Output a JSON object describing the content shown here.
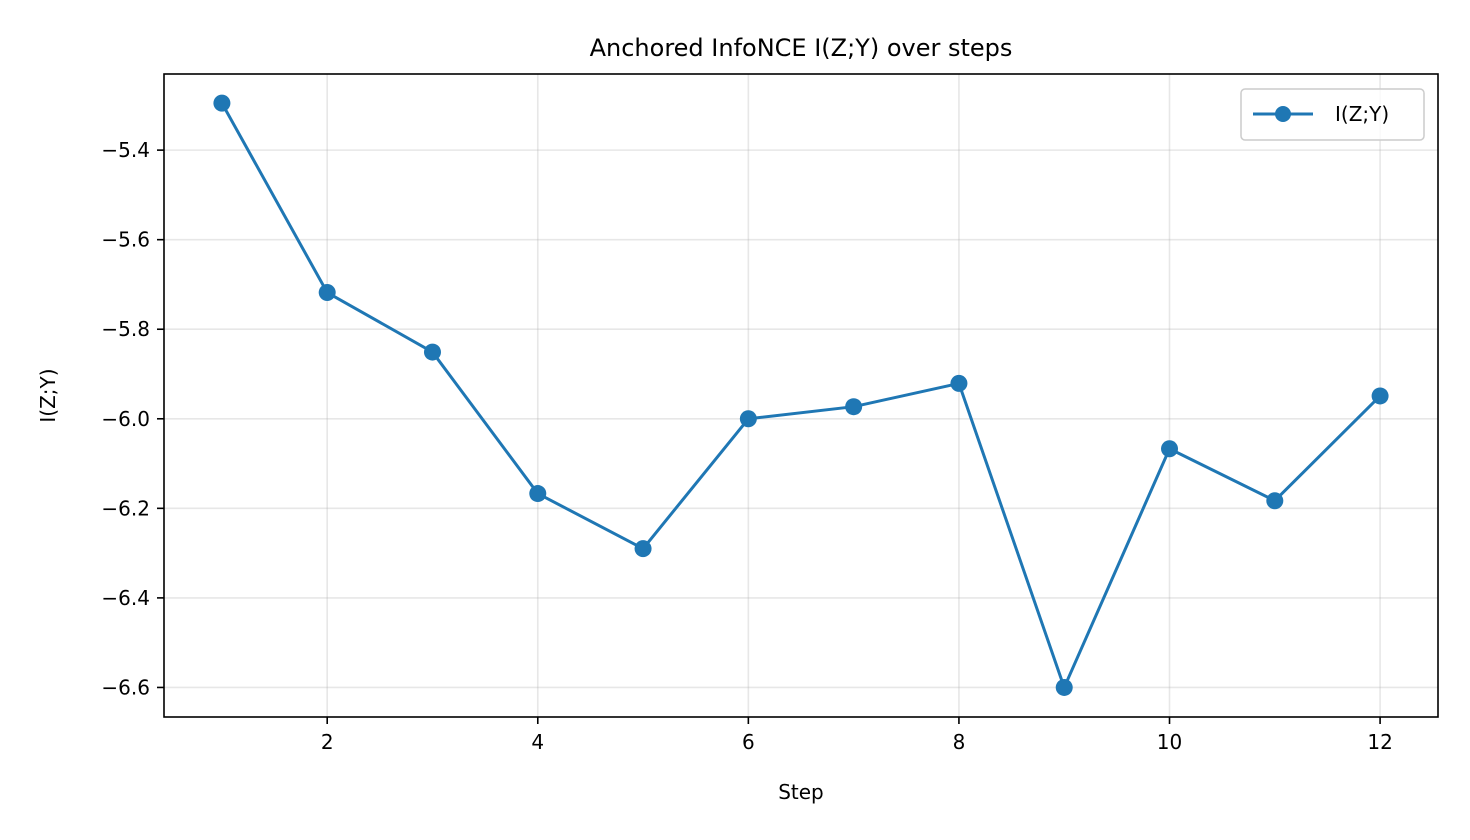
{
  "chart_data": {
    "type": "line",
    "title": "Anchored InfoNCE I(Z;Y) over steps",
    "xlabel": "Step",
    "ylabel": "I(Z;Y)",
    "x": [
      1,
      2,
      3,
      4,
      5,
      6,
      7,
      8,
      9,
      10,
      11,
      12
    ],
    "series": [
      {
        "name": "I(Z;Y)",
        "color": "#1f77b4",
        "marker": "circle",
        "values": [
          -5.295,
          -5.718,
          -5.851,
          -6.167,
          -6.29,
          -6.0,
          -5.973,
          -5.921,
          -6.6,
          -6.067,
          -6.183,
          -5.949
        ]
      }
    ],
    "xlim": [
      0.45,
      12.55
    ],
    "ylim": [
      -6.666,
      -5.23
    ],
    "xticks": [
      2,
      4,
      6,
      8,
      10,
      12
    ],
    "xtick_labels": [
      "2",
      "4",
      "6",
      "8",
      "10",
      "12"
    ],
    "yticks": [
      -5.4,
      -5.6,
      -5.8,
      -6.0,
      -6.2,
      -6.4,
      -6.6
    ],
    "ytick_labels": [
      "−5.4",
      "−5.6",
      "−5.8",
      "−6.0",
      "−6.2",
      "−6.4",
      "−6.6"
    ],
    "grid": true,
    "legend_position": "top-right"
  }
}
